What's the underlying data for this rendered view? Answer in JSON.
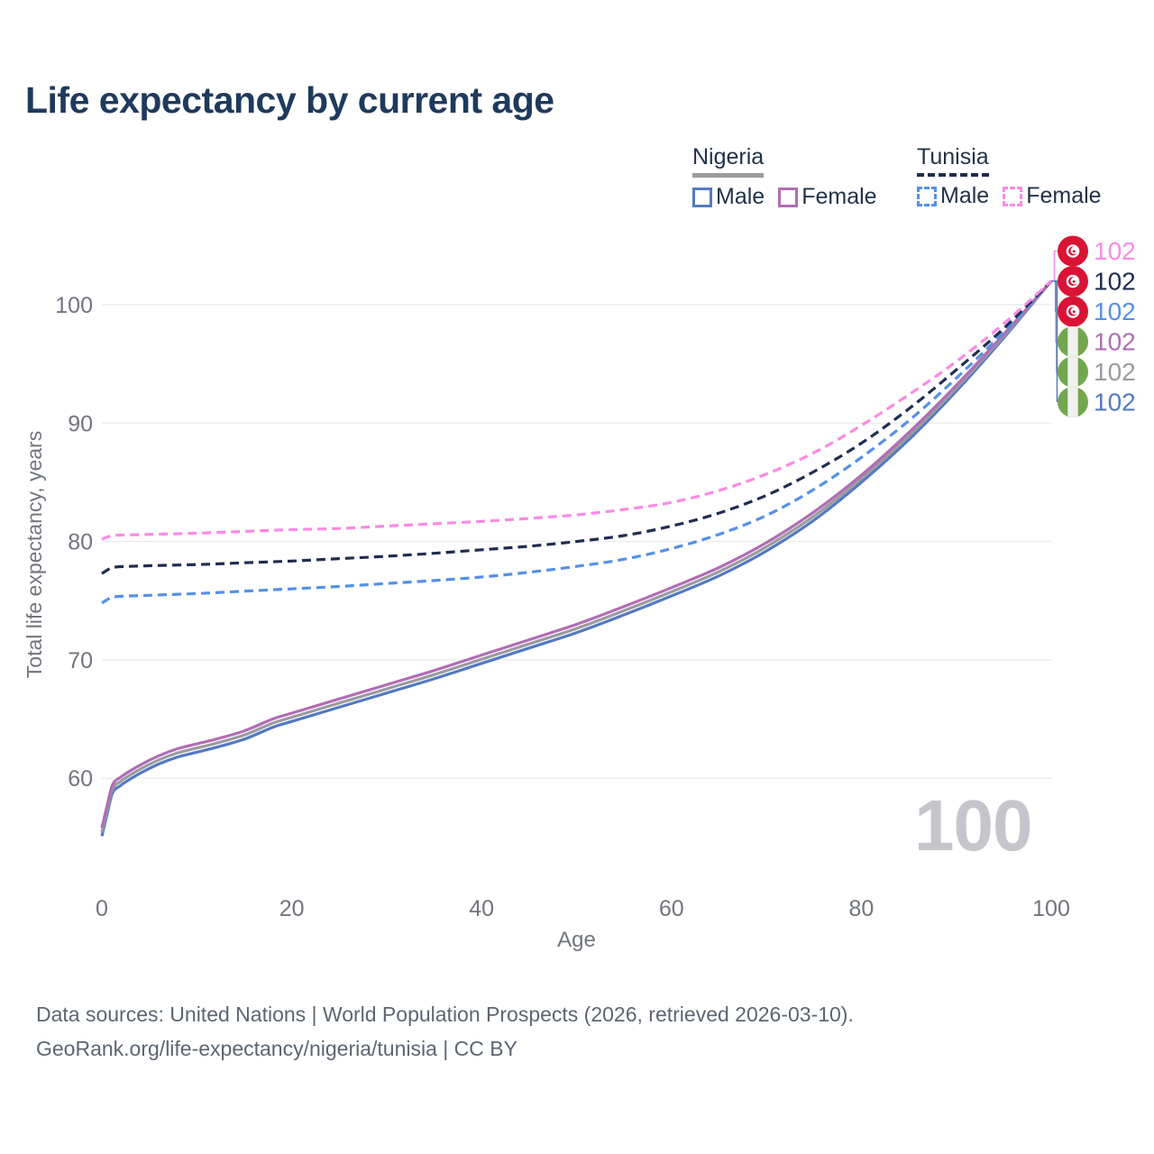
{
  "title": "Life expectancy by current age",
  "legend": {
    "groups": [
      {
        "country": "Nigeria",
        "line_style": "solid",
        "items": [
          {
            "label": "Male"
          },
          {
            "label": "Female"
          }
        ]
      },
      {
        "country": "Tunisia",
        "line_style": "dashed",
        "items": [
          {
            "label": "Male"
          },
          {
            "label": "Female"
          }
        ]
      }
    ]
  },
  "watermark": "100",
  "footer": {
    "line1": "Data sources: United Nations | World Population Prospects (2026, retrieved 2026-03-10).",
    "line2": "GeoRank.org/life-expectancy/nigeria/tunisia | CC BY"
  },
  "colors": {
    "nigeria_male": "#5379c1",
    "nigeria_female": "#b16db5",
    "nigeria_total": "#9b9ba0",
    "tunisia_male": "#5590e8",
    "tunisia_female": "#fc8ae5",
    "tunisia_total": "#1f2d50",
    "title_text": "#1e3a5c",
    "legend_text": "#223349",
    "axis_text": "#71757d",
    "grid": "#ececee",
    "watermark": "#c5c5cb",
    "footer_text": "#5c6672",
    "flag_tunisia_red": "#da1335",
    "flag_nigeria_green": "#73a64e",
    "flag_stripe_white": "#f1f1ef"
  },
  "chart_data": {
    "type": "line",
    "title": "Life expectancy by current age",
    "xlabel": "Age",
    "ylabel": "Total life expectancy, years",
    "xlim": [
      0,
      100
    ],
    "ylim": [
      53,
      105
    ],
    "x_ticks": [
      0,
      20,
      40,
      60,
      80,
      100
    ],
    "y_ticks": [
      60,
      70,
      80,
      90,
      100
    ],
    "grid": "horizontal-only",
    "legend_position": "top-right",
    "end_age": 100,
    "end_value": 102,
    "series": [
      {
        "name": "Nigeria Male",
        "country": "Nigeria",
        "sex": "male",
        "line_style": "solid",
        "color_key": "nigeria_male",
        "end_value": 102,
        "points": [
          [
            0,
            55.1
          ],
          [
            1,
            58.5
          ],
          [
            2,
            59.4
          ],
          [
            4,
            60.4
          ],
          [
            6,
            61.2
          ],
          [
            8,
            61.8
          ],
          [
            10,
            62.2
          ],
          [
            12,
            62.6
          ],
          [
            15,
            63.3
          ],
          [
            18,
            64.3
          ],
          [
            20,
            64.8
          ],
          [
            25,
            66.0
          ],
          [
            30,
            67.2
          ],
          [
            35,
            68.4
          ],
          [
            40,
            69.7
          ],
          [
            45,
            71.0
          ],
          [
            50,
            72.3
          ],
          [
            55,
            73.8
          ],
          [
            60,
            75.4
          ],
          [
            65,
            77.1
          ],
          [
            70,
            79.2
          ],
          [
            75,
            81.8
          ],
          [
            80,
            85.0
          ],
          [
            85,
            88.6
          ],
          [
            90,
            92.7
          ],
          [
            95,
            97.2
          ],
          [
            100,
            102
          ]
        ]
      },
      {
        "name": "Nigeria Total",
        "country": "Nigeria",
        "sex": "both",
        "line_style": "solid",
        "color_key": "nigeria_total",
        "end_value": 102,
        "points": [
          [
            0,
            55.45
          ],
          [
            1,
            58.85
          ],
          [
            2,
            59.75
          ],
          [
            4,
            60.75
          ],
          [
            6,
            61.55
          ],
          [
            8,
            62.15
          ],
          [
            10,
            62.55
          ],
          [
            12,
            62.95
          ],
          [
            15,
            63.65
          ],
          [
            18,
            64.65
          ],
          [
            20,
            65.15
          ],
          [
            25,
            66.35
          ],
          [
            30,
            67.55
          ],
          [
            35,
            68.75
          ],
          [
            40,
            70.05
          ],
          [
            45,
            71.35
          ],
          [
            50,
            72.65
          ],
          [
            55,
            74.15
          ],
          [
            60,
            75.75
          ],
          [
            65,
            77.45
          ],
          [
            70,
            79.55
          ],
          [
            75,
            82.15
          ],
          [
            80,
            85.3
          ],
          [
            85,
            88.9
          ],
          [
            90,
            92.95
          ],
          [
            95,
            97.35
          ],
          [
            100,
            102
          ]
        ]
      },
      {
        "name": "Nigeria Female",
        "country": "Nigeria",
        "sex": "female",
        "line_style": "solid",
        "color_key": "nigeria_female",
        "end_value": 102,
        "points": [
          [
            0,
            55.8
          ],
          [
            1,
            59.2
          ],
          [
            2,
            60.1
          ],
          [
            4,
            61.1
          ],
          [
            6,
            61.9
          ],
          [
            8,
            62.5
          ],
          [
            10,
            62.9
          ],
          [
            12,
            63.3
          ],
          [
            15,
            64.0
          ],
          [
            18,
            65.0
          ],
          [
            20,
            65.5
          ],
          [
            25,
            66.7
          ],
          [
            30,
            67.9
          ],
          [
            35,
            69.1
          ],
          [
            40,
            70.4
          ],
          [
            45,
            71.7
          ],
          [
            50,
            73.0
          ],
          [
            55,
            74.5
          ],
          [
            60,
            76.1
          ],
          [
            65,
            77.8
          ],
          [
            70,
            79.9
          ],
          [
            75,
            82.5
          ],
          [
            80,
            85.6
          ],
          [
            85,
            89.2
          ],
          [
            90,
            93.2
          ],
          [
            95,
            97.5
          ],
          [
            100,
            102
          ]
        ]
      },
      {
        "name": "Tunisia Male",
        "country": "Tunisia",
        "sex": "male",
        "line_style": "dashed",
        "color_key": "tunisia_male",
        "end_value": 102,
        "points": [
          [
            0,
            74.8
          ],
          [
            1,
            75.3
          ],
          [
            5,
            75.45
          ],
          [
            10,
            75.6
          ],
          [
            15,
            75.8
          ],
          [
            20,
            76.0
          ],
          [
            25,
            76.2
          ],
          [
            30,
            76.45
          ],
          [
            35,
            76.7
          ],
          [
            40,
            77.0
          ],
          [
            45,
            77.4
          ],
          [
            50,
            77.9
          ],
          [
            55,
            78.5
          ],
          [
            60,
            79.4
          ],
          [
            65,
            80.6
          ],
          [
            70,
            82.2
          ],
          [
            75,
            84.4
          ],
          [
            80,
            87.1
          ],
          [
            85,
            90.2
          ],
          [
            90,
            93.8
          ],
          [
            95,
            97.7
          ],
          [
            100,
            102
          ]
        ]
      },
      {
        "name": "Tunisia Total",
        "country": "Tunisia",
        "sex": "both",
        "line_style": "dashed",
        "color_key": "tunisia_total",
        "end_value": 102,
        "points": [
          [
            0,
            77.3
          ],
          [
            1,
            77.8
          ],
          [
            5,
            77.95
          ],
          [
            10,
            78.05
          ],
          [
            15,
            78.2
          ],
          [
            20,
            78.35
          ],
          [
            25,
            78.55
          ],
          [
            30,
            78.75
          ],
          [
            35,
            79.0
          ],
          [
            40,
            79.3
          ],
          [
            45,
            79.6
          ],
          [
            50,
            80.0
          ],
          [
            55,
            80.5
          ],
          [
            60,
            81.3
          ],
          [
            65,
            82.4
          ],
          [
            70,
            83.9
          ],
          [
            75,
            85.9
          ],
          [
            80,
            88.3
          ],
          [
            85,
            91.2
          ],
          [
            90,
            94.5
          ],
          [
            95,
            98.0
          ],
          [
            100,
            102
          ]
        ]
      },
      {
        "name": "Tunisia Female",
        "country": "Tunisia",
        "sex": "female",
        "line_style": "dashed",
        "color_key": "tunisia_female",
        "end_value": 102,
        "points": [
          [
            0,
            80.2
          ],
          [
            1,
            80.5
          ],
          [
            5,
            80.6
          ],
          [
            10,
            80.7
          ],
          [
            15,
            80.85
          ],
          [
            20,
            81.0
          ],
          [
            25,
            81.1
          ],
          [
            30,
            81.3
          ],
          [
            35,
            81.5
          ],
          [
            40,
            81.7
          ],
          [
            45,
            81.95
          ],
          [
            50,
            82.25
          ],
          [
            55,
            82.7
          ],
          [
            60,
            83.3
          ],
          [
            65,
            84.3
          ],
          [
            70,
            85.7
          ],
          [
            75,
            87.5
          ],
          [
            80,
            89.8
          ],
          [
            85,
            92.4
          ],
          [
            90,
            95.2
          ],
          [
            95,
            98.4
          ],
          [
            100,
            102
          ]
        ]
      }
    ],
    "end_labels": [
      {
        "flag": "tunisia",
        "series": "Tunisia Female",
        "label": "102",
        "color_key": "tunisia_female"
      },
      {
        "flag": "tunisia",
        "series": "Tunisia Total",
        "label": "102",
        "color_key": "tunisia_total"
      },
      {
        "flag": "tunisia",
        "series": "Tunisia Male",
        "label": "102",
        "color_key": "tunisia_male"
      },
      {
        "flag": "nigeria",
        "series": "Nigeria Female",
        "label": "102",
        "color_key": "nigeria_female"
      },
      {
        "flag": "nigeria",
        "series": "Nigeria Total",
        "label": "102",
        "color_key": "nigeria_total"
      },
      {
        "flag": "nigeria",
        "series": "Nigeria Male",
        "label": "102",
        "color_key": "nigeria_male"
      }
    ]
  }
}
